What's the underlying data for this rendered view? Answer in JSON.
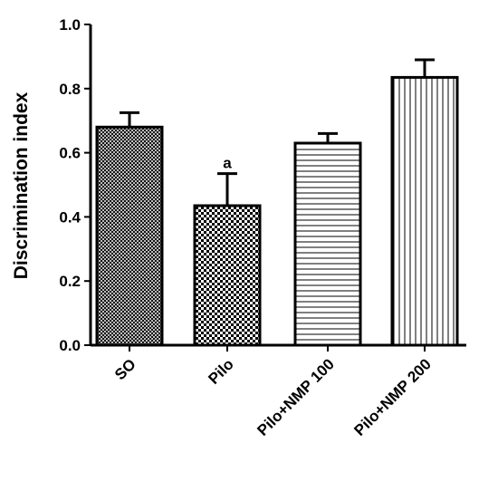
{
  "chart_data": {
    "type": "bar",
    "ylabel": "Discrimination index",
    "categories": [
      "SO",
      "Pilo",
      "Pilo+NMP 100",
      "Pilo+NMP 200"
    ],
    "values": [
      0.68,
      0.435,
      0.63,
      0.835
    ],
    "errors": [
      0.045,
      0.1,
      0.03,
      0.055
    ],
    "value_annotations": [
      null,
      "a",
      null,
      null
    ],
    "patterns": [
      "crosshatch",
      "checker",
      "horizontal",
      "vertical"
    ],
    "color": "#000000",
    "ylim": [
      0,
      1
    ],
    "yticks": [
      {
        "value": 0,
        "label": "0.0"
      },
      0.2,
      0.4,
      0.6,
      0.8,
      {
        "value": 1,
        "label": "1.0"
      }
    ]
  }
}
